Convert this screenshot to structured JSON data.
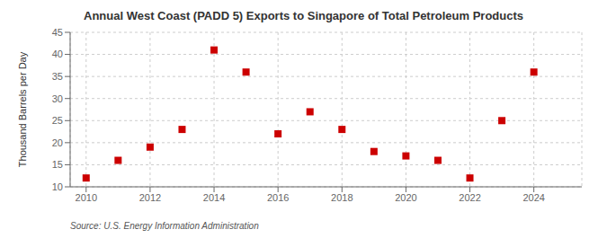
{
  "chart_data": {
    "type": "scatter",
    "title": "Annual West Coast (PADD 5) Exports to Singapore of Total Petroleum Products",
    "ylabel": "Thousand Barrels per Day",
    "annotation": "Source: U.S. Energy Information Administration",
    "x": [
      2010,
      2011,
      2012,
      2013,
      2014,
      2015,
      2016,
      2017,
      2018,
      2019,
      2020,
      2021,
      2022,
      2023,
      2024
    ],
    "values": [
      12,
      16,
      19,
      23,
      41,
      36,
      22,
      27,
      23,
      18,
      17,
      16,
      12,
      25,
      36
    ],
    "color": "#cc0000",
    "marker": "square",
    "xlim": [
      2009.5,
      2025.5
    ],
    "ylim": [
      10,
      45
    ],
    "xticks": [
      2010,
      2012,
      2014,
      2016,
      2018,
      2020,
      2022,
      2024
    ],
    "yticks": [
      10,
      15,
      20,
      25,
      30,
      35,
      40,
      45
    ],
    "grid": true
  }
}
